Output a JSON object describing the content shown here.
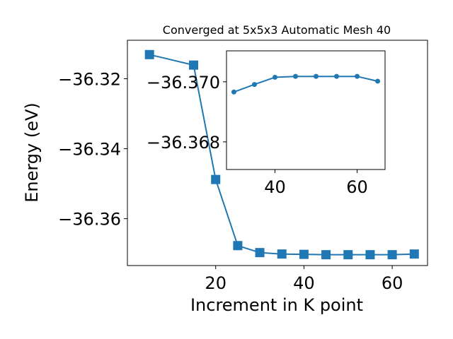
{
  "chart_data": [
    {
      "type": "line",
      "title": "Converged at 5x5x3 Automatic Mesh 40",
      "xlabel": "Increment in K point",
      "ylabel": "Energy (eV)",
      "xlim": [
        0,
        68
      ],
      "ylim": [
        -36.3734,
        -36.309
      ],
      "xticks": [
        20,
        40,
        60
      ],
      "xtick_labels": [
        "20",
        "40",
        "60"
      ],
      "yticks": [
        -36.32,
        -36.34,
        -36.36
      ],
      "ytick_labels": [
        "−36.32",
        "−36.34",
        "−36.36"
      ],
      "grid": false,
      "marker": "square",
      "color": "#1f77b4",
      "series": [
        {
          "x": [
            5,
            15,
            20,
            25,
            30,
            35,
            40,
            45,
            50,
            55,
            60,
            65
          ],
          "values": [
            -36.3131,
            -36.3161,
            -36.3488,
            -36.3677,
            -36.3697,
            -36.3701,
            -36.3702,
            -36.3703,
            -36.3703,
            -36.3703,
            -36.3703,
            -36.3701
          ]
        }
      ]
    },
    {
      "type": "line",
      "title": "",
      "xlabel": "",
      "ylabel": "",
      "xlim": [
        28.2,
        66.8
      ],
      "ylim": [
        -36.36708,
        -36.37103
      ],
      "xticks": [
        40,
        60
      ],
      "xtick_labels": [
        "40",
        "60"
      ],
      "yticks": [
        -36.37,
        -36.368
      ],
      "ytick_labels": [
        "−36.370",
        "−36.368"
      ],
      "grid": false,
      "marker": "circle",
      "color": "#1f77b4",
      "series": [
        {
          "x": [
            30,
            35,
            40,
            45,
            50,
            55,
            60,
            65
          ],
          "values": [
            -36.36966,
            -36.36991,
            -36.37015,
            -36.37018,
            -36.37018,
            -36.37018,
            -36.37018,
            -36.37002
          ]
        }
      ]
    }
  ]
}
